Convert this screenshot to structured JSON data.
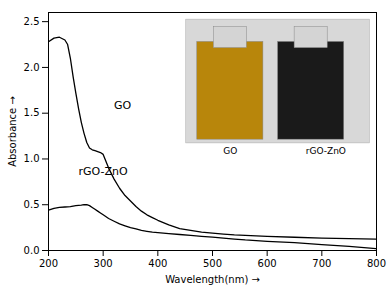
{
  "chart_data": {
    "type": "line",
    "xlabel": "Wavelength(nm)",
    "ylabel": "Absorbance",
    "xlim": [
      200,
      800
    ],
    "ylim": [
      0,
      2.6
    ],
    "xticks": [
      200,
      300,
      400,
      500,
      600,
      700,
      800
    ],
    "yticks": [
      {
        "value": 0.0,
        "label": "0.0"
      },
      0.5,
      {
        "value": 1.0,
        "label": "1.0"
      },
      1.5,
      {
        "value": 2.0,
        "label": "2.0"
      },
      2.5
    ],
    "series": [
      {
        "color": "#000000",
        "x": [
          200,
          210,
          220,
          230,
          235,
          240,
          245,
          250,
          255,
          260,
          265,
          270,
          275,
          280,
          285,
          290,
          295,
          300,
          310,
          320,
          330,
          340,
          350,
          360,
          370,
          380,
          390,
          400,
          420,
          440,
          460,
          480,
          500,
          520,
          540,
          560,
          580,
          600,
          650,
          700,
          750,
          800
        ],
        "values": [
          2.28,
          2.32,
          2.33,
          2.3,
          2.25,
          2.1,
          1.9,
          1.72,
          1.55,
          1.4,
          1.28,
          1.18,
          1.12,
          1.1,
          1.09,
          1.08,
          1.07,
          1.05,
          0.9,
          0.78,
          0.68,
          0.6,
          0.54,
          0.48,
          0.43,
          0.39,
          0.36,
          0.33,
          0.28,
          0.24,
          0.22,
          0.2,
          0.19,
          0.18,
          0.17,
          0.165,
          0.16,
          0.155,
          0.145,
          0.135,
          0.13,
          0.125
        ]
      },
      {
        "color": "#000000",
        "x": [
          200,
          210,
          220,
          230,
          240,
          250,
          260,
          265,
          270,
          275,
          280,
          285,
          290,
          295,
          300,
          310,
          320,
          330,
          340,
          350,
          360,
          370,
          380,
          390,
          400,
          420,
          440,
          460,
          480,
          500,
          520,
          540,
          560,
          580,
          600,
          650,
          700,
          750,
          800
        ],
        "values": [
          0.44,
          0.46,
          0.47,
          0.475,
          0.48,
          0.49,
          0.495,
          0.5,
          0.5,
          0.49,
          0.47,
          0.45,
          0.43,
          0.41,
          0.39,
          0.35,
          0.32,
          0.29,
          0.27,
          0.25,
          0.235,
          0.22,
          0.21,
          0.2,
          0.195,
          0.185,
          0.175,
          0.165,
          0.155,
          0.145,
          0.135,
          0.125,
          0.115,
          0.108,
          0.1,
          0.085,
          0.065,
          0.045,
          0.02
        ]
      }
    ],
    "annotations": [
      {
        "text": "GO",
        "x": 320,
        "y": 1.55
      },
      {
        "text": "rGO-ZnO",
        "x": 255,
        "y": 0.82
      }
    ],
    "inset_labels": [
      "GO",
      "rGO-ZnO"
    ]
  }
}
